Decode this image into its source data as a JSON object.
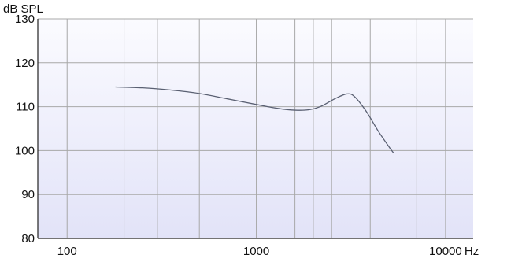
{
  "chart_data": {
    "type": "line",
    "title": "",
    "xlabel": "Hz",
    "ylabel": "dB SPL",
    "xscale": "log",
    "xlim": [
      70,
      14000
    ],
    "ylim": [
      80,
      130
    ],
    "x_ticks": [
      100,
      1000,
      10000
    ],
    "x_tick_labels": [
      "100",
      "1000",
      "10000"
    ],
    "y_ticks": [
      80,
      90,
      100,
      110,
      120,
      130
    ],
    "y_tick_labels": [
      "80",
      "90",
      "100",
      "110",
      "120",
      "130"
    ],
    "x_grid_lines": [
      100,
      200,
      300,
      500,
      1000,
      1600,
      2000,
      2500,
      4000,
      7000,
      10000
    ],
    "grid": true,
    "legend": "none",
    "colors": {
      "background_top": "#fbfbff",
      "background_bottom": "#e2e3f8",
      "series": "#5a6072"
    },
    "series": [
      {
        "x": [
          180,
          250,
          350,
          500,
          700,
          1000,
          1300,
          1600,
          1900,
          2200,
          2600,
          3000,
          3300,
          3800,
          4400,
          5000,
          5300
        ],
        "y": [
          114.5,
          114.3,
          113.8,
          113.0,
          111.8,
          110.5,
          109.6,
          109.2,
          109.3,
          110.1,
          111.8,
          112.9,
          112.3,
          109.0,
          104.5,
          101.0,
          99.5
        ]
      }
    ]
  }
}
